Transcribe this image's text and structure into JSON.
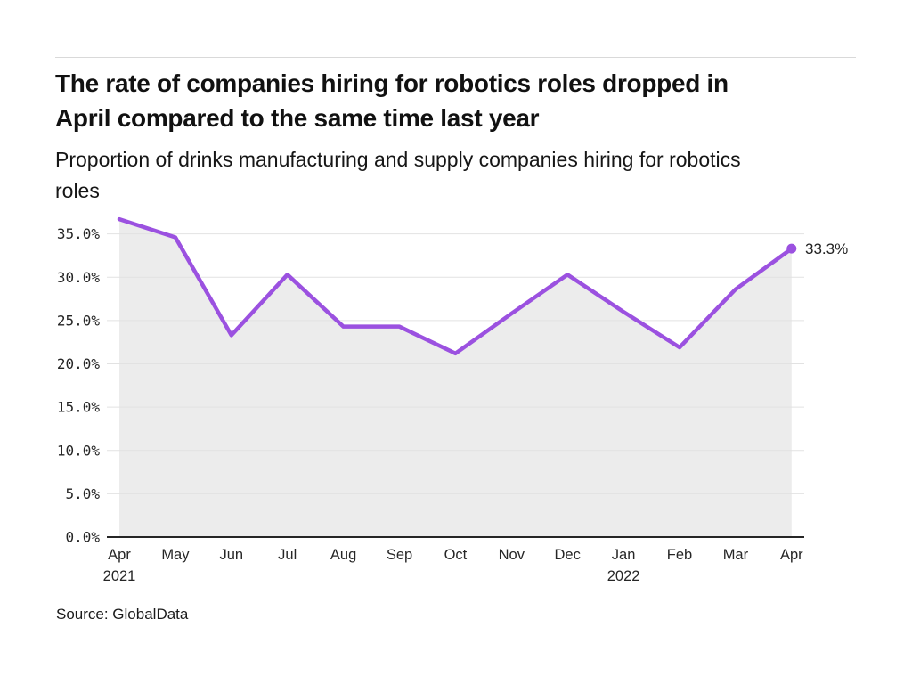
{
  "page": {
    "title_lines": [
      "The rate of companies hiring for robotics roles dropped in",
      "April compared to the same time last year"
    ],
    "subtitle_lines": [
      "Proportion of drinks manufacturing and supply companies hiring for robotics",
      "roles"
    ],
    "source": "Source: GlobalData"
  },
  "chart_data": {
    "type": "area",
    "title": "The rate of companies hiring for robotics roles dropped in April compared to the same time last year",
    "subtitle": "Proportion of drinks manufacturing and supply companies hiring for robotics roles",
    "x": [
      "Apr 2021",
      "May 2021",
      "Jun 2021",
      "Jul 2021",
      "Aug 2021",
      "Sep 2021",
      "Oct 2021",
      "Nov 2021",
      "Dec 2021",
      "Jan 2022",
      "Feb 2022",
      "Mar 2022",
      "Apr 2022"
    ],
    "x_tick_labels": [
      "Apr",
      "May",
      "Jun",
      "Jul",
      "Aug",
      "Sep",
      "Oct",
      "Nov",
      "Dec",
      "Jan",
      "Feb",
      "Mar",
      "Apr"
    ],
    "x_year_labels": [
      {
        "index": 0,
        "label": "2021"
      },
      {
        "index": 9,
        "label": "2022"
      }
    ],
    "values": [
      36.7,
      34.6,
      23.3,
      30.3,
      24.3,
      24.3,
      21.2,
      25.8,
      30.3,
      26.0,
      21.9,
      28.6,
      33.3
    ],
    "unit": "%",
    "ylim": [
      0,
      37.5
    ],
    "y_ticks": [
      0,
      5,
      10,
      15,
      20,
      25,
      30,
      35
    ],
    "y_tick_labels": [
      "0.0%",
      "5.0%",
      "10.0%",
      "15.0%",
      "20.0%",
      "25.0%",
      "30.0%",
      "35.0%"
    ],
    "end_label": "33.3%",
    "grid": true,
    "legend": "none",
    "colors": {
      "line": "#9b51e0",
      "area": "#ececec",
      "grid": "#e2e2e2",
      "axis": "#262626",
      "text": "#262626"
    }
  }
}
